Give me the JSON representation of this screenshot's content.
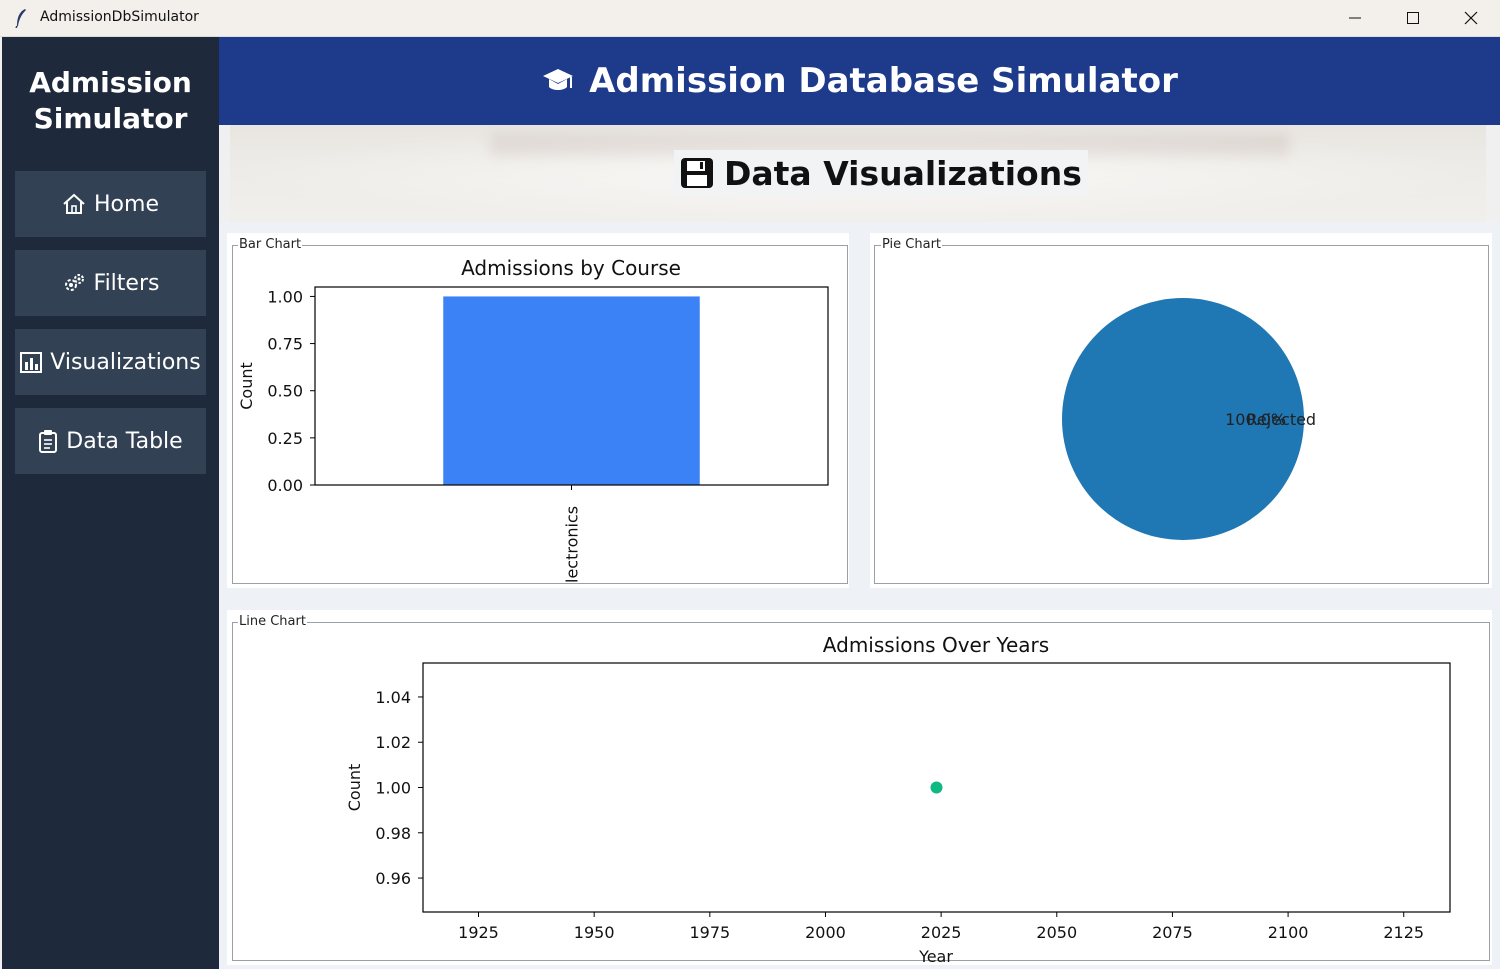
{
  "window": {
    "title": "AdmissionDbSimulator"
  },
  "sidebar": {
    "brand_line1": "Admission",
    "brand_line2": "Simulator",
    "items": [
      {
        "label": "Home",
        "icon": "house-icon"
      },
      {
        "label": "Filters",
        "icon": "gears-icon"
      },
      {
        "label": "Visualizations",
        "icon": "bar-chart-icon"
      },
      {
        "label": "Data Table",
        "icon": "clipboard-icon"
      }
    ]
  },
  "header": {
    "title": "Admission Database Simulator",
    "icon": "graduation-cap-icon"
  },
  "section": {
    "title": "Data Visualizations",
    "icon": "floppy-disk-icon"
  },
  "panels": {
    "bar_label": "Bar Chart",
    "pie_label": "Pie Chart",
    "line_label": "Line Chart"
  },
  "colors": {
    "sidebar_bg": "#1e293b",
    "nav_button": "#334155",
    "header_bg": "#1e3a8a",
    "bar": "#3b82f6",
    "pie": "#1f77b4",
    "point": "#10b981"
  },
  "chart_data": [
    {
      "type": "bar",
      "title": "Admissions by Course",
      "xlabel": "",
      "ylabel": "Count",
      "categories": [
        "Electronics"
      ],
      "category_visible_text": "lectronics",
      "values": [
        1
      ],
      "ylim": [
        0,
        1.05
      ],
      "yticks": [
        "0.00",
        "0.25",
        "0.50",
        "0.75",
        "1.00"
      ],
      "grid": false
    },
    {
      "type": "pie",
      "labels": [
        "Rejected"
      ],
      "values": [
        100
      ],
      "autopct": [
        "100.0%"
      ]
    },
    {
      "type": "scatter",
      "title": "Admissions Over Years",
      "xlabel": "Year",
      "ylabel": "Count",
      "x": [
        2024
      ],
      "y": [
        1
      ],
      "xlim": [
        1913,
        2135
      ],
      "ylim": [
        0.945,
        1.055
      ],
      "xticks": [
        "1925",
        "1950",
        "1975",
        "2000",
        "2025",
        "2050",
        "2075",
        "2100",
        "2125"
      ],
      "yticks": [
        "0.96",
        "0.98",
        "1.00",
        "1.02",
        "1.04"
      ],
      "grid": false
    }
  ]
}
